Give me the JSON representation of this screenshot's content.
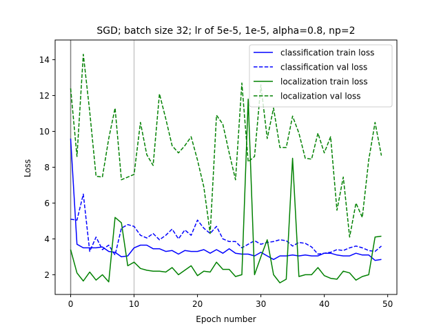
{
  "chart_data": {
    "type": "line",
    "title": "SGD; batch size 32; lr of 5e-5, 1e-5, alpha=0.8, np=2",
    "xlabel": "Epoch number",
    "ylabel": "Loss",
    "xlim": [
      -2.45,
      51.45
    ],
    "ylim": [
      0.9,
      15.1
    ],
    "xticks": [
      0,
      10,
      20,
      30,
      40,
      50
    ],
    "yticks": [
      2,
      4,
      6,
      8,
      10,
      12,
      14
    ],
    "vlines": [
      0,
      10
    ],
    "legend_position": "top-right",
    "x": [
      0,
      1,
      2,
      3,
      4,
      5,
      6,
      7,
      8,
      9,
      10,
      11,
      12,
      13,
      14,
      15,
      16,
      17,
      18,
      19,
      20,
      21,
      22,
      23,
      24,
      25,
      26,
      27,
      28,
      29,
      30,
      31,
      32,
      33,
      34,
      35,
      36,
      37,
      38,
      39,
      40,
      41,
      42,
      43,
      44,
      45,
      46,
      47,
      48,
      49
    ],
    "series": [
      {
        "name": "classification train loss",
        "color": "#0000ff",
        "style": "solid",
        "values": [
          9.6,
          3.7,
          3.5,
          3.5,
          3.5,
          3.55,
          3.3,
          3.25,
          3.0,
          3.05,
          3.5,
          3.65,
          3.65,
          3.45,
          3.45,
          3.3,
          3.35,
          3.15,
          3.35,
          3.3,
          3.3,
          3.4,
          3.2,
          3.4,
          3.2,
          3.45,
          3.2,
          3.15,
          3.15,
          3.05,
          3.25,
          3.05,
          2.85,
          3.05,
          3.05,
          3.1,
          3.05,
          3.1,
          3.05,
          3.05,
          3.2,
          3.2,
          3.1,
          3.05,
          3.05,
          3.2,
          3.1,
          3.1,
          2.8,
          2.85
        ]
      },
      {
        "name": "classification val loss",
        "color": "#0000ff",
        "style": "dashed",
        "values": [
          5.1,
          5.05,
          6.5,
          3.3,
          4.1,
          3.4,
          3.65,
          3.1,
          4.6,
          4.8,
          4.7,
          4.2,
          4.05,
          4.3,
          3.95,
          4.2,
          4.55,
          4.0,
          4.5,
          4.2,
          5.05,
          4.6,
          4.3,
          4.7,
          4.0,
          3.85,
          3.85,
          3.5,
          3.7,
          3.9,
          3.7,
          3.8,
          3.85,
          3.95,
          3.9,
          3.6,
          3.8,
          3.75,
          3.55,
          3.15,
          3.2,
          3.25,
          3.4,
          3.35,
          3.5,
          3.6,
          3.5,
          3.35,
          3.3,
          3.6
        ]
      },
      {
        "name": "localization train loss",
        "color": "#008000",
        "style": "solid",
        "values": [
          3.4,
          2.1,
          1.65,
          2.15,
          1.7,
          2.0,
          1.6,
          5.2,
          4.9,
          2.5,
          2.7,
          2.35,
          2.25,
          2.2,
          2.2,
          2.15,
          2.4,
          2.0,
          2.25,
          2.5,
          1.95,
          2.2,
          2.15,
          2.7,
          2.3,
          2.3,
          1.9,
          2.0,
          11.8,
          2.0,
          3.0,
          3.95,
          2.0,
          1.55,
          1.75,
          8.5,
          1.9,
          2.0,
          2.0,
          2.4,
          1.95,
          1.8,
          1.75,
          2.2,
          2.1,
          1.7,
          1.9,
          2.0,
          4.1,
          4.15
        ]
      },
      {
        "name": "localization val loss",
        "color": "#008000",
        "style": "dashed",
        "values": [
          12.4,
          8.6,
          14.3,
          11.1,
          7.5,
          7.45,
          9.6,
          11.3,
          7.3,
          7.45,
          7.6,
          10.5,
          8.7,
          8.1,
          12.1,
          10.7,
          9.2,
          8.8,
          9.2,
          9.7,
          8.4,
          6.9,
          4.3,
          10.9,
          10.4,
          8.8,
          7.3,
          12.7,
          8.3,
          8.6,
          12.6,
          9.6,
          11.3,
          9.1,
          9.1,
          10.85,
          9.9,
          8.5,
          8.45,
          9.9,
          8.8,
          9.7,
          5.6,
          7.45,
          4.1,
          6.0,
          5.2,
          8.4,
          10.5,
          8.65
        ]
      }
    ]
  }
}
